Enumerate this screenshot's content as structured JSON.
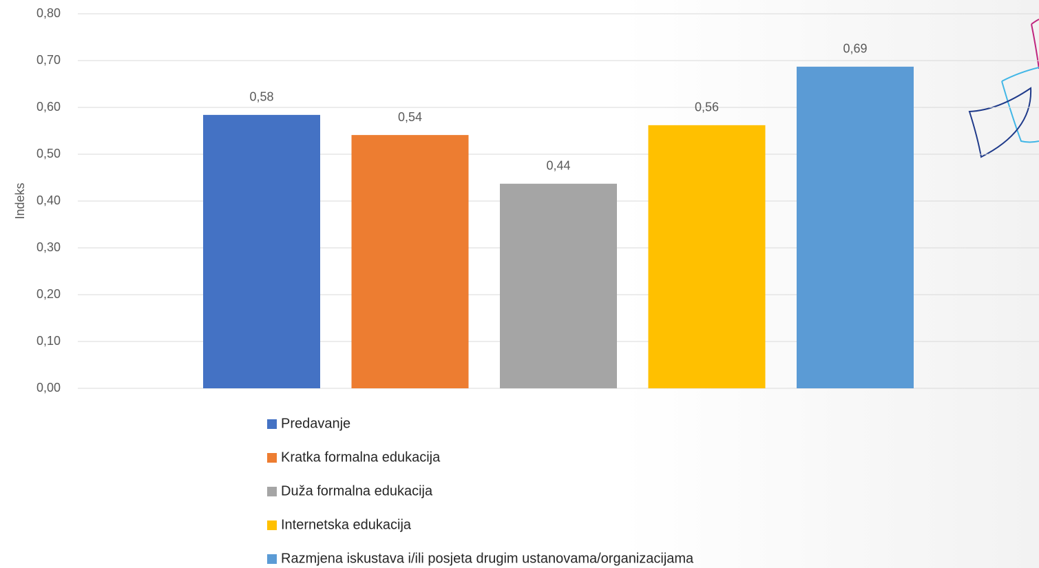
{
  "chart_data": {
    "type": "bar",
    "y_label": "Indeks",
    "categories": [
      null
    ],
    "series": [
      {
        "name": "Predavanje",
        "color": "#4472c4",
        "values": [
          0.584
        ],
        "value_labels": [
          "0,58"
        ]
      },
      {
        "name": "Kratka formalna edukacija",
        "color": "#ed7d31",
        "values": [
          0.541
        ],
        "value_labels": [
          "0,54"
        ]
      },
      {
        "name": "Duža formalna edukacija",
        "color": "#a5a5a5",
        "values": [
          0.437
        ],
        "value_labels": [
          "0,44"
        ]
      },
      {
        "name": "Internetska edukacija",
        "color": "#ffc000",
        "values": [
          0.562
        ],
        "value_labels": [
          "0,56"
        ]
      },
      {
        "name": "Razmjena iskustava i/ili posjeta drugim ustanovama/organizacijama",
        "color": "#5b9bd5",
        "values": [
          0.687
        ],
        "value_labels": [
          "0,69"
        ]
      }
    ],
    "ylim": [
      0,
      0.8
    ],
    "yticks": [
      {
        "value": 0,
        "label": "0,00"
      },
      {
        "value": 0.1,
        "label": "0,10"
      },
      {
        "value": 0.2,
        "label": "0,20"
      },
      {
        "value": 0.3,
        "label": "0,30"
      },
      {
        "value": 0.4,
        "label": "0,40"
      },
      {
        "value": 0.5,
        "label": "0,50"
      },
      {
        "value": 0.6,
        "label": "0,60"
      },
      {
        "value": 0.7,
        "label": "0,70"
      },
      {
        "value": 0.8,
        "label": "0,80"
      }
    ],
    "grid": true,
    "legend": "bottom"
  }
}
